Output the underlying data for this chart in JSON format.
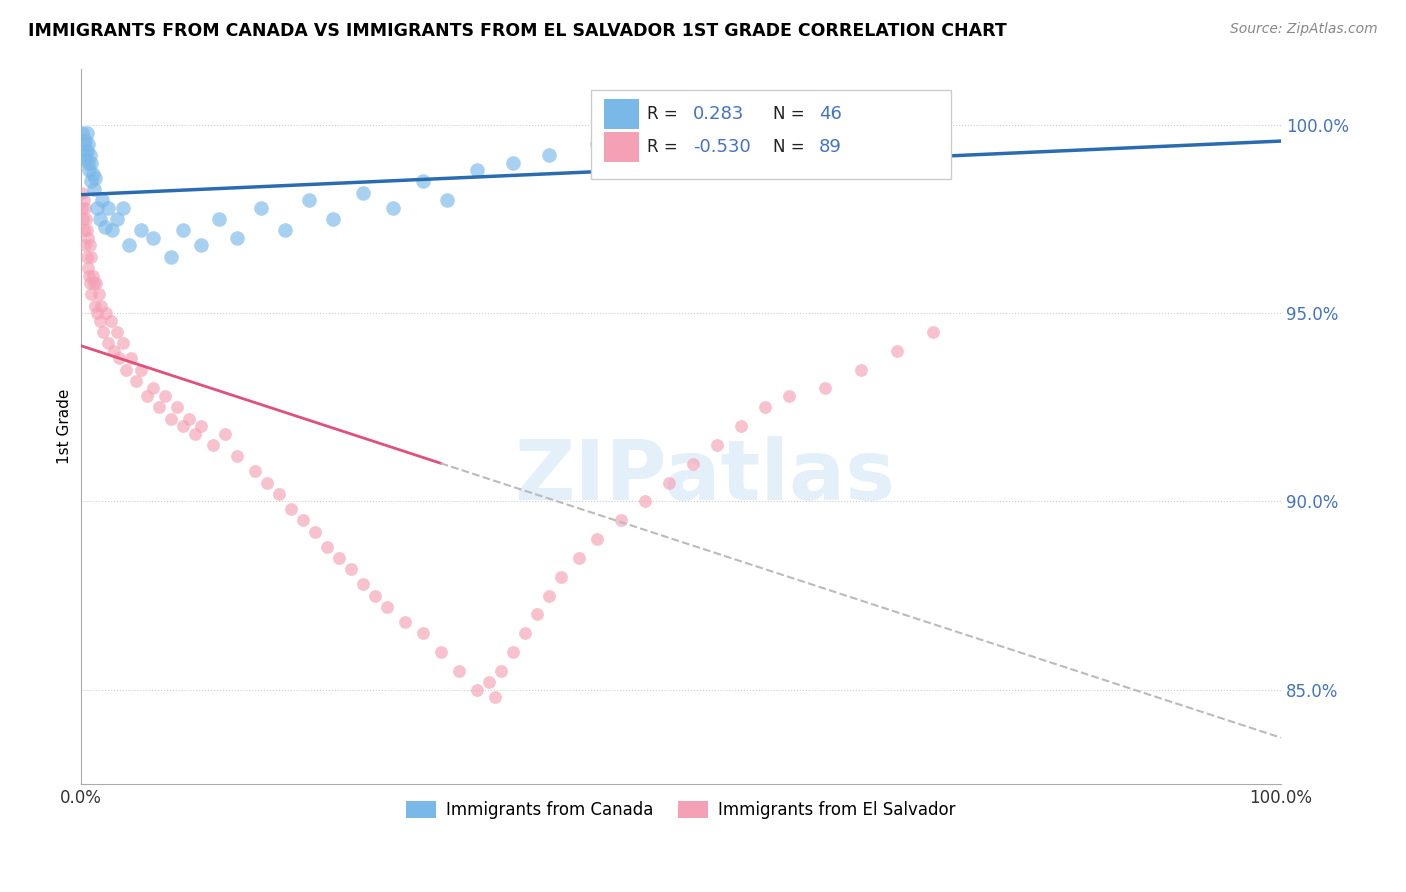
{
  "title": "IMMIGRANTS FROM CANADA VS IMMIGRANTS FROM EL SALVADOR 1ST GRADE CORRELATION CHART",
  "source_text": "Source: ZipAtlas.com",
  "ylabel": "1st Grade",
  "xlim": [
    0.0,
    100.0
  ],
  "ylim": [
    82.5,
    101.5
  ],
  "ytick_vals": [
    85.0,
    90.0,
    95.0,
    100.0
  ],
  "ytick_labels": [
    "85.0%",
    "90.0%",
    "95.0%",
    "100.0%"
  ],
  "legend_labels": [
    "Immigrants from Canada",
    "Immigrants from El Salvador"
  ],
  "canada_color": "#7ab8e8",
  "canada_line_color": "#2b6cb0",
  "el_salvador_color": "#f4a0b5",
  "el_salvador_line_color": "#e0507a",
  "R_canada": 0.283,
  "N_canada": 46,
  "R_el_salvador": -0.53,
  "N_el_salvador": 89,
  "canada_x": [
    0.15,
    0.25,
    0.35,
    0.4,
    0.45,
    0.5,
    0.55,
    0.6,
    0.65,
    0.7,
    0.8,
    0.85,
    0.9,
    1.0,
    1.1,
    1.2,
    1.4,
    1.6,
    1.8,
    2.0,
    2.3,
    2.6,
    3.0,
    3.5,
    4.0,
    5.0,
    6.0,
    7.5,
    8.5,
    10.0,
    11.5,
    13.0,
    15.0,
    17.0,
    19.0,
    21.0,
    23.5,
    26.0,
    28.5,
    30.5,
    33.0,
    36.0,
    39.0,
    43.0,
    48.0,
    54.0
  ],
  "canada_y": [
    99.8,
    99.5,
    99.2,
    99.6,
    99.1,
    99.8,
    99.3,
    99.0,
    99.5,
    98.8,
    99.2,
    98.5,
    99.0,
    98.7,
    98.3,
    98.6,
    97.8,
    97.5,
    98.0,
    97.3,
    97.8,
    97.2,
    97.5,
    97.8,
    96.8,
    97.2,
    97.0,
    96.5,
    97.2,
    96.8,
    97.5,
    97.0,
    97.8,
    97.2,
    98.0,
    97.5,
    98.2,
    97.8,
    98.5,
    98.0,
    98.8,
    99.0,
    99.2,
    99.5,
    99.8,
    100.2
  ],
  "el_salvador_x": [
    0.1,
    0.15,
    0.2,
    0.25,
    0.3,
    0.35,
    0.4,
    0.45,
    0.5,
    0.55,
    0.6,
    0.65,
    0.7,
    0.75,
    0.8,
    0.85,
    0.9,
    1.0,
    1.1,
    1.2,
    1.3,
    1.4,
    1.5,
    1.6,
    1.7,
    1.9,
    2.1,
    2.3,
    2.5,
    2.8,
    3.0,
    3.2,
    3.5,
    3.8,
    4.2,
    4.6,
    5.0,
    5.5,
    6.0,
    6.5,
    7.0,
    7.5,
    8.0,
    8.5,
    9.0,
    9.5,
    10.0,
    11.0,
    12.0,
    13.0,
    14.5,
    15.5,
    16.5,
    17.5,
    18.5,
    19.5,
    20.5,
    21.5,
    22.5,
    23.5,
    24.5,
    25.5,
    27.0,
    28.5,
    30.0,
    31.5,
    33.0,
    34.0,
    34.5,
    35.0,
    36.0,
    37.0,
    38.0,
    39.0,
    40.0,
    41.5,
    43.0,
    45.0,
    47.0,
    49.0,
    51.0,
    53.0,
    55.0,
    57.0,
    59.0,
    62.0,
    65.0,
    68.0,
    71.0
  ],
  "el_salvador_y": [
    97.8,
    98.2,
    97.5,
    98.0,
    97.2,
    97.8,
    96.8,
    97.5,
    96.5,
    97.2,
    96.2,
    97.0,
    96.0,
    96.8,
    95.8,
    96.5,
    95.5,
    96.0,
    95.8,
    95.2,
    95.8,
    95.0,
    95.5,
    94.8,
    95.2,
    94.5,
    95.0,
    94.2,
    94.8,
    94.0,
    94.5,
    93.8,
    94.2,
    93.5,
    93.8,
    93.2,
    93.5,
    92.8,
    93.0,
    92.5,
    92.8,
    92.2,
    92.5,
    92.0,
    92.2,
    91.8,
    92.0,
    91.5,
    91.8,
    91.2,
    90.8,
    90.5,
    90.2,
    89.8,
    89.5,
    89.2,
    88.8,
    88.5,
    88.2,
    87.8,
    87.5,
    87.2,
    86.8,
    86.5,
    86.0,
    85.5,
    85.0,
    85.2,
    84.8,
    85.5,
    86.0,
    86.5,
    87.0,
    87.5,
    88.0,
    88.5,
    89.0,
    89.5,
    90.0,
    90.5,
    91.0,
    91.5,
    92.0,
    92.5,
    92.8,
    93.0,
    93.5,
    94.0,
    94.5
  ],
  "dot_size_canada": 110,
  "dot_size_el_salvador": 85,
  "watermark_text": "ZIPatlas"
}
